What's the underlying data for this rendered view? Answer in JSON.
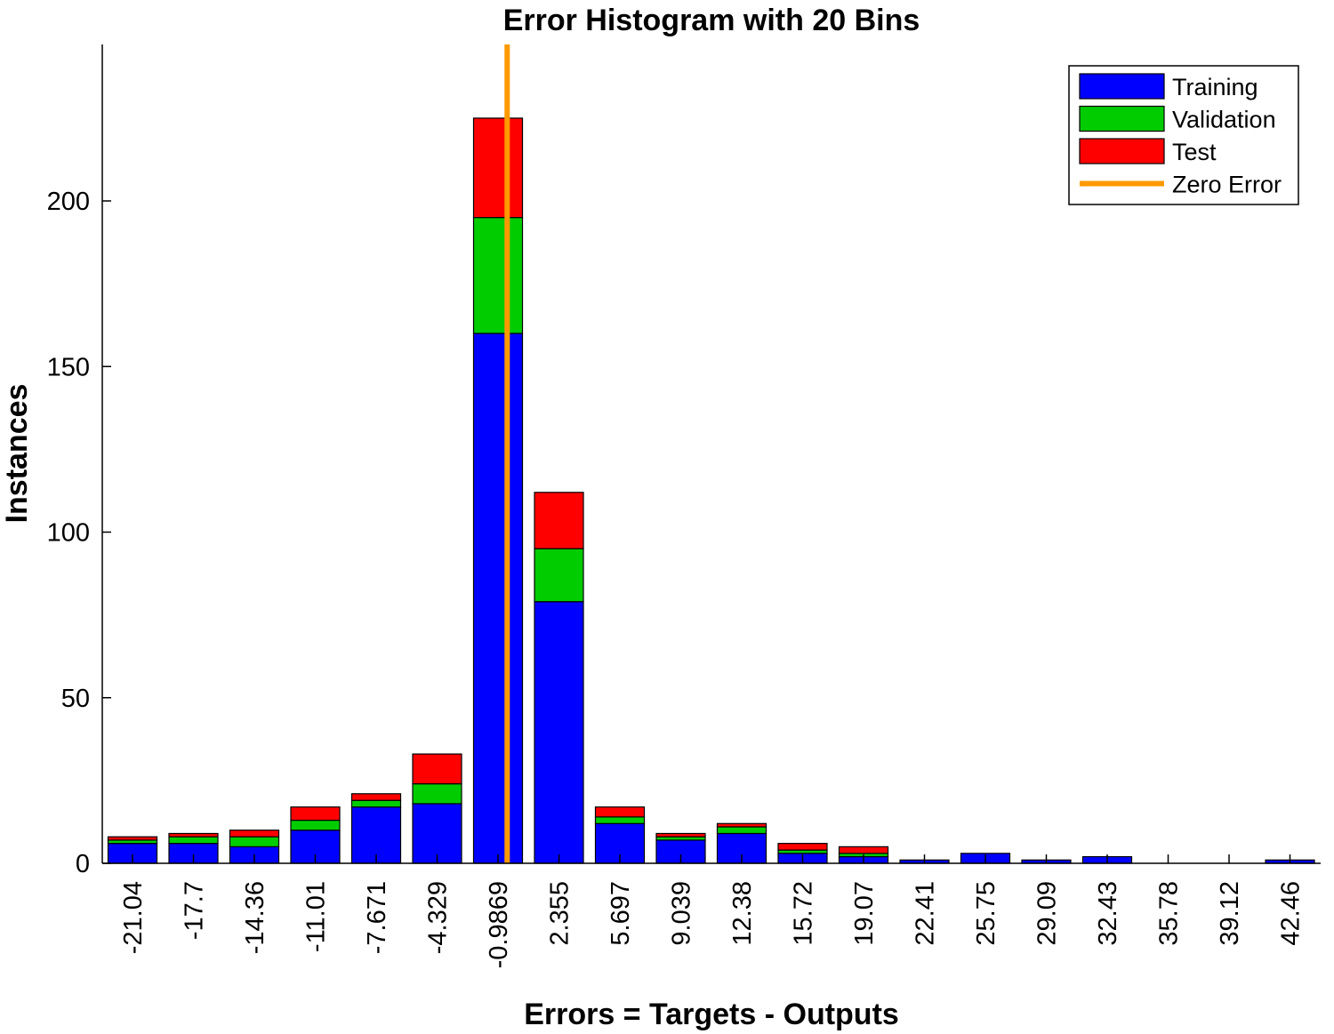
{
  "chart_data": {
    "type": "bar",
    "stacked": true,
    "title": "Error Histogram with 20 Bins",
    "xlabel": "Errors = Targets - Outputs",
    "ylabel": "Instances",
    "categories": [
      "-21.04",
      "-17.7",
      "-14.36",
      "-11.01",
      "-7.671",
      "-4.329",
      "-0.9869",
      "2.355",
      "5.697",
      "9.039",
      "12.38",
      "15.72",
      "19.07",
      "22.41",
      "25.75",
      "29.09",
      "32.43",
      "35.78",
      "39.12",
      "42.46"
    ],
    "series": [
      {
        "name": "Training",
        "color": "#0000ff",
        "values": [
          6,
          6,
          5,
          10,
          17,
          18,
          160,
          79,
          12,
          7,
          9,
          3,
          2,
          1,
          3,
          1,
          2,
          0,
          0,
          1
        ]
      },
      {
        "name": "Validation",
        "color": "#00cc00",
        "values": [
          1,
          2,
          3,
          3,
          2,
          6,
          35,
          16,
          2,
          1,
          2,
          1,
          1,
          0,
          0,
          0,
          0,
          0,
          0,
          0
        ]
      },
      {
        "name": "Test",
        "color": "#ff0000",
        "values": [
          1,
          1,
          2,
          4,
          2,
          9,
          30,
          17,
          3,
          1,
          1,
          2,
          2,
          0,
          0,
          0,
          0,
          0,
          0,
          0
        ]
      }
    ],
    "zero_error": {
      "label": "Zero Error",
      "color": "#ff9900",
      "x_category_position": 6.15
    },
    "ylim": [
      0,
      247
    ],
    "yticks": [
      0,
      50,
      100,
      150,
      200
    ],
    "legend": {
      "placement": "top-right",
      "entries": [
        "Training",
        "Validation",
        "Test",
        "Zero Error"
      ]
    },
    "grid": false
  }
}
